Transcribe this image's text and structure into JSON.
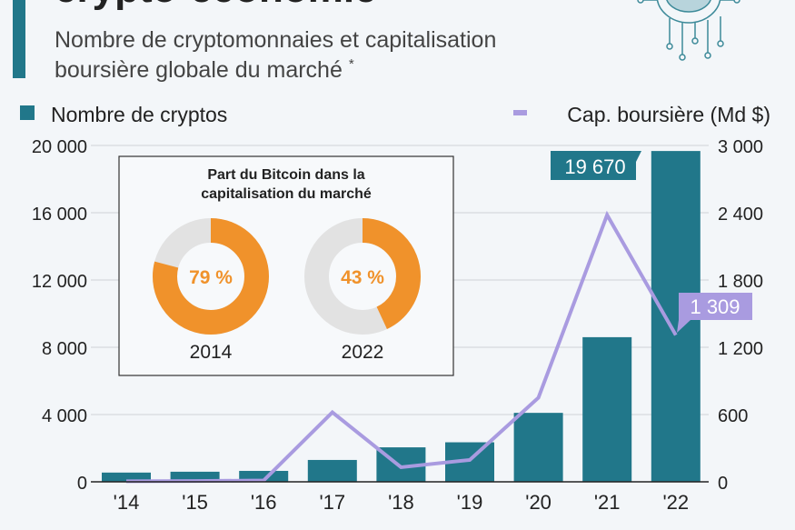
{
  "header": {
    "title": "crypto-économie",
    "subtitle_line1": "Nombre de cryptomonnaies et capitalisation",
    "subtitle_line2": "boursière globale du marché",
    "subtitle_mark": "*"
  },
  "colors": {
    "bar": "#21778a",
    "line": "#a99be0",
    "btc": "#f0922b",
    "rest": "#e2e2e2",
    "accent": "#21778a"
  },
  "icon": "circuit-coin-icon",
  "chart_data": {
    "type": "bar+line",
    "categories": [
      "'14",
      "'15",
      "'16",
      "'17",
      "'18",
      "'19",
      "'20",
      "'21",
      "'22"
    ],
    "series": [
      {
        "name": "Nombre de cryptos",
        "type": "bar",
        "axis": "left",
        "values": [
          550,
          600,
          650,
          1300,
          2050,
          2350,
          4100,
          8600,
          19670
        ]
      },
      {
        "name": "Cap. boursière (Md $)",
        "type": "line",
        "axis": "right",
        "values": [
          5,
          7,
          12,
          620,
          130,
          195,
          750,
          2380,
          1309
        ]
      }
    ],
    "left_axis": {
      "range": [
        0,
        20000
      ],
      "ticks": [
        "0",
        "4 000",
        "8 000",
        "12 000",
        "16 000",
        "20 000"
      ]
    },
    "right_axis": {
      "range": [
        0,
        3000
      ],
      "ticks": [
        "0",
        "600",
        "1 200",
        "1 800",
        "2 400",
        "3 000"
      ]
    },
    "data_labels": {
      "bar_last": "19 670",
      "line_last": "1 309"
    },
    "legend": {
      "position": "top"
    },
    "grid": true,
    "inset": {
      "title_line1": "Part du Bitcoin dans la",
      "title_line2": "capitalisation du marché",
      "type": "pie",
      "donuts": [
        {
          "year": "2014",
          "share": 79,
          "label": "79 %"
        },
        {
          "year": "2022",
          "share": 43,
          "label": "43 %"
        }
      ]
    }
  }
}
